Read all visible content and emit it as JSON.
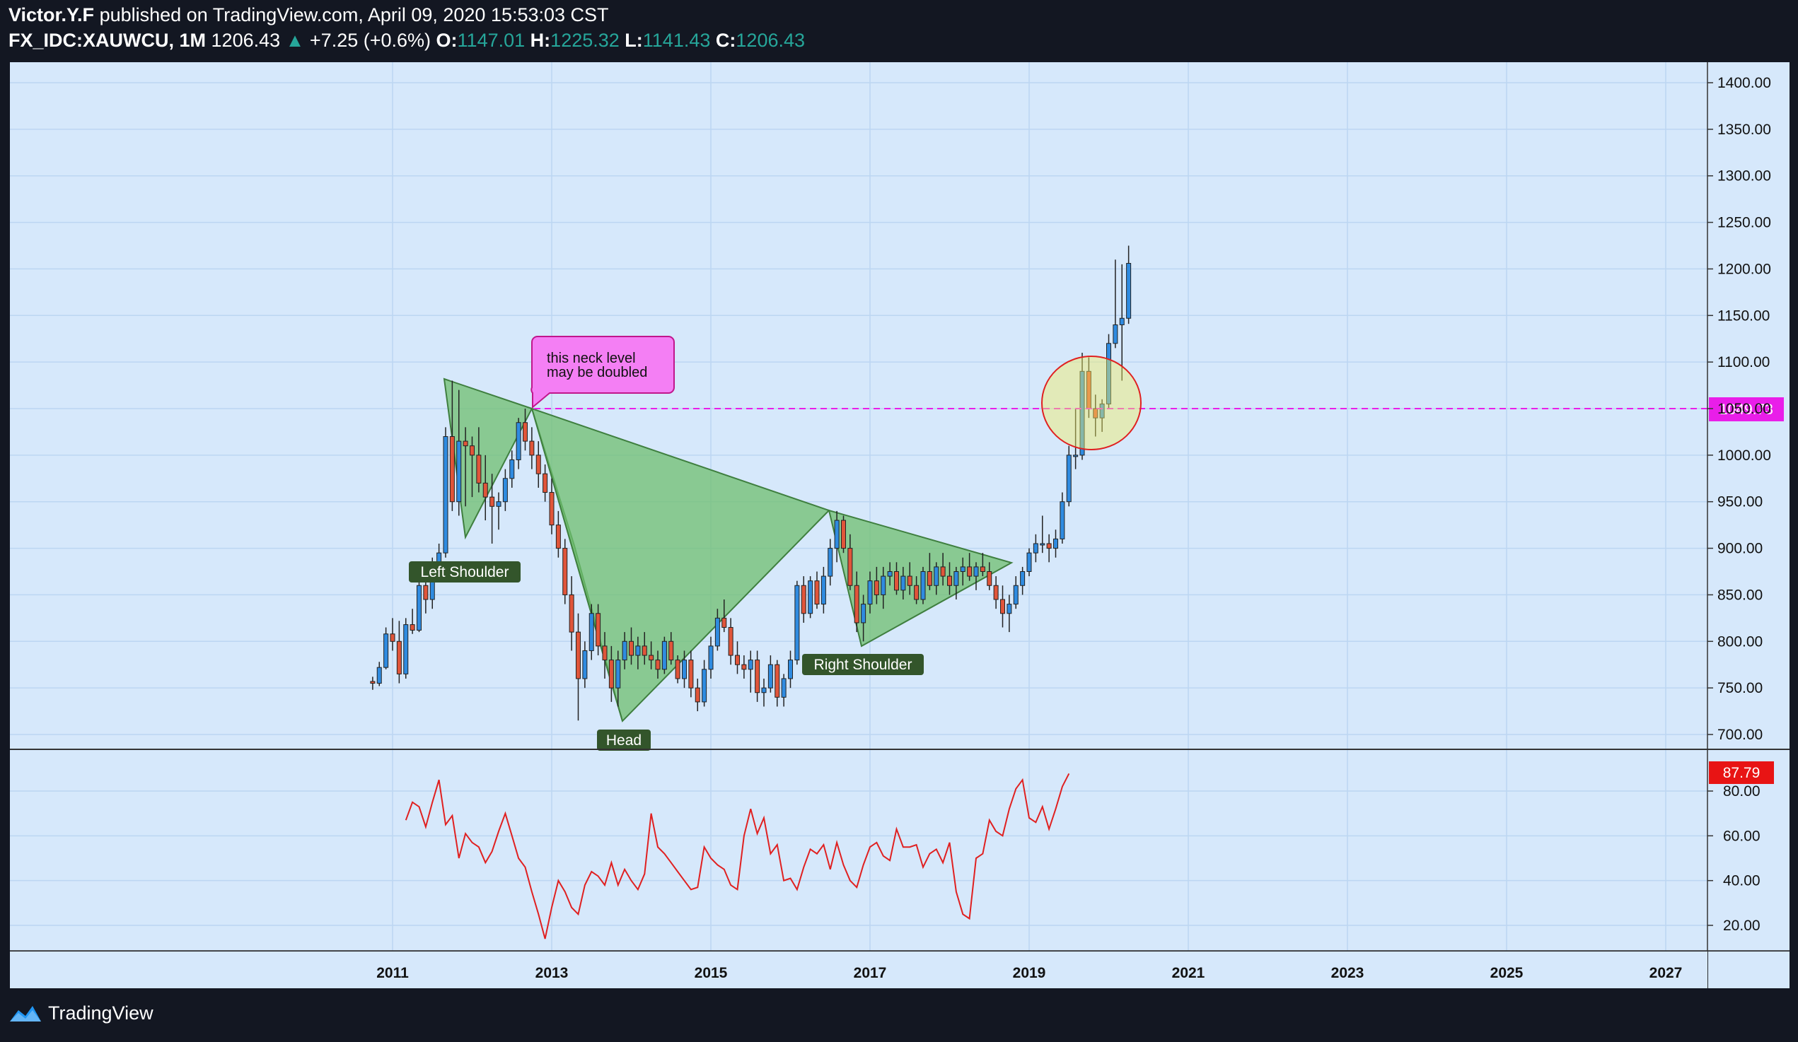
{
  "header": {
    "author": "Victor.Y.F",
    "published_text": "published on TradingView.com, April 09, 2020 15:53:03 CST",
    "symbol": "FX_IDC:XAUWCU, 1M",
    "last": "1206.43",
    "arrow": "▲",
    "change": "+7.25 (+0.6%)",
    "o_label": "O:",
    "o_value": "1147.01",
    "h_label": "H:",
    "h_value": "1225.32",
    "l_label": "L:",
    "l_value": "1141.43",
    "c_label": "C:",
    "c_value": "1206.43"
  },
  "footer": {
    "brand": "TradingView"
  },
  "colors": {
    "background": "#131722",
    "plot_bg": "#d6e8fb",
    "grid": "#bcd6f2",
    "bull": "#2f8be0",
    "bear": "#e0553a",
    "pattern_fill": "#6fbf6f",
    "neckline": "#e91ee9",
    "rsi_line": "#e02020",
    "label_bg": "#33552b"
  },
  "chart_data": [
    {
      "type": "candlestick",
      "interval": "1M",
      "x_axis": {
        "ticks": [
          "2011",
          "2013",
          "2015",
          "2017",
          "2019",
          "2021",
          "2023",
          "2025",
          "2027"
        ]
      },
      "y_axis": {
        "position": "right",
        "ylim": [
          683,
          1420
        ],
        "ticks": [
          "700.00",
          "750.00",
          "800.00",
          "850.00",
          "900.00",
          "950.00",
          "1000.00",
          "1050.00",
          "1100.00",
          "1150.00",
          "1200.00",
          "1250.00",
          "1300.00",
          "1350.00",
          "1400.00"
        ]
      },
      "grid": true,
      "candles_note": "Monthly OHLC from Oct 2010 to Apr 2020",
      "ohlc": [
        [
          "2010-10",
          757,
          762,
          748,
          755
        ],
        [
          "2010-11",
          755,
          778,
          752,
          772
        ],
        [
          "2010-12",
          772,
          815,
          770,
          808
        ],
        [
          "2011-01",
          808,
          825,
          790,
          800
        ],
        [
          "2011-02",
          800,
          822,
          755,
          765
        ],
        [
          "2011-03",
          765,
          825,
          760,
          818
        ],
        [
          "2011-04",
          818,
          835,
          808,
          812
        ],
        [
          "2011-05",
          812,
          870,
          810,
          860
        ],
        [
          "2011-06",
          860,
          870,
          830,
          845
        ],
        [
          "2011-07",
          845,
          890,
          835,
          880
        ],
        [
          "2011-08",
          880,
          905,
          870,
          895
        ],
        [
          "2011-09",
          895,
          1030,
          890,
          1020
        ],
        [
          "2011-10",
          1020,
          1080,
          940,
          950
        ],
        [
          "2011-11",
          950,
          1070,
          935,
          1015
        ],
        [
          "2011-12",
          1015,
          1030,
          945,
          1010
        ],
        [
          "2012-01",
          1010,
          1020,
          955,
          1000
        ],
        [
          "2012-02",
          1000,
          1030,
          960,
          970
        ],
        [
          "2012-03",
          970,
          1000,
          930,
          955
        ],
        [
          "2012-04",
          955,
          980,
          905,
          945
        ],
        [
          "2012-05",
          945,
          960,
          920,
          950
        ],
        [
          "2012-06",
          950,
          985,
          940,
          975
        ],
        [
          "2012-07",
          975,
          1005,
          965,
          995
        ],
        [
          "2012-08",
          995,
          1040,
          985,
          1035
        ],
        [
          "2012-09",
          1035,
          1050,
          1005,
          1015
        ],
        [
          "2012-10",
          1015,
          1030,
          985,
          1000
        ],
        [
          "2012-11",
          1000,
          1015,
          965,
          980
        ],
        [
          "2012-12",
          980,
          990,
          950,
          960
        ],
        [
          "2013-01",
          960,
          975,
          915,
          925
        ],
        [
          "2013-02",
          925,
          940,
          890,
          900
        ],
        [
          "2013-03",
          900,
          910,
          840,
          850
        ],
        [
          "2013-04",
          850,
          870,
          790,
          810
        ],
        [
          "2013-05",
          810,
          830,
          715,
          760
        ],
        [
          "2013-06",
          760,
          800,
          750,
          790
        ],
        [
          "2013-07",
          790,
          840,
          780,
          830
        ],
        [
          "2013-08",
          830,
          840,
          785,
          795
        ],
        [
          "2013-09",
          795,
          810,
          760,
          780
        ],
        [
          "2013-10",
          780,
          795,
          735,
          750
        ],
        [
          "2013-11",
          750,
          790,
          730,
          780
        ],
        [
          "2013-12",
          780,
          810,
          770,
          800
        ],
        [
          "2014-01",
          800,
          815,
          775,
          785
        ],
        [
          "2014-02",
          785,
          805,
          770,
          795
        ],
        [
          "2014-03",
          795,
          810,
          775,
          785
        ],
        [
          "2014-04",
          785,
          800,
          770,
          780
        ],
        [
          "2014-05",
          780,
          790,
          760,
          770
        ],
        [
          "2014-06",
          770,
          805,
          765,
          800
        ],
        [
          "2014-07",
          800,
          810,
          775,
          780
        ],
        [
          "2014-08",
          780,
          785,
          755,
          760
        ],
        [
          "2014-09",
          760,
          790,
          750,
          780
        ],
        [
          "2014-10",
          780,
          790,
          740,
          750
        ],
        [
          "2014-11",
          750,
          760,
          725,
          735
        ],
        [
          "2014-12",
          735,
          780,
          730,
          770
        ],
        [
          "2015-01",
          770,
          805,
          760,
          795
        ],
        [
          "2015-02",
          795,
          835,
          790,
          825
        ],
        [
          "2015-03",
          825,
          845,
          810,
          815
        ],
        [
          "2015-04",
          815,
          825,
          775,
          785
        ],
        [
          "2015-05",
          785,
          800,
          765,
          775
        ],
        [
          "2015-06",
          775,
          785,
          760,
          770
        ],
        [
          "2015-07",
          770,
          790,
          745,
          780
        ],
        [
          "2015-08",
          780,
          790,
          735,
          745
        ],
        [
          "2015-09",
          745,
          760,
          730,
          750
        ],
        [
          "2015-10",
          750,
          785,
          745,
          775
        ],
        [
          "2015-11",
          775,
          780,
          730,
          740
        ],
        [
          "2015-12",
          740,
          765,
          730,
          760
        ],
        [
          "2016-01",
          760,
          790,
          750,
          780
        ],
        [
          "2016-02",
          780,
          865,
          775,
          860
        ],
        [
          "2016-03",
          860,
          870,
          820,
          830
        ],
        [
          "2016-04",
          830,
          870,
          825,
          865
        ],
        [
          "2016-05",
          865,
          875,
          835,
          840
        ],
        [
          "2016-06",
          840,
          880,
          830,
          870
        ],
        [
          "2016-07",
          870,
          910,
          860,
          900
        ],
        [
          "2016-08",
          900,
          940,
          885,
          930
        ],
        [
          "2016-09",
          930,
          935,
          895,
          900
        ],
        [
          "2016-10",
          900,
          915,
          855,
          860
        ],
        [
          "2016-11",
          860,
          875,
          810,
          820
        ],
        [
          "2016-12",
          820,
          850,
          800,
          840
        ],
        [
          "2017-01",
          840,
          875,
          830,
          865
        ],
        [
          "2017-02",
          865,
          880,
          840,
          850
        ],
        [
          "2017-03",
          850,
          880,
          835,
          870
        ],
        [
          "2017-04",
          870,
          885,
          860,
          875
        ],
        [
          "2017-05",
          875,
          885,
          850,
          855
        ],
        [
          "2017-06",
          855,
          880,
          845,
          870
        ],
        [
          "2017-07",
          870,
          885,
          850,
          860
        ],
        [
          "2017-08",
          860,
          870,
          840,
          845
        ],
        [
          "2017-09",
          845,
          880,
          840,
          875
        ],
        [
          "2017-10",
          875,
          895,
          855,
          860
        ],
        [
          "2017-11",
          860,
          885,
          850,
          880
        ],
        [
          "2017-12",
          880,
          895,
          860,
          870
        ],
        [
          "2018-01",
          870,
          885,
          850,
          860
        ],
        [
          "2018-02",
          860,
          880,
          845,
          875
        ],
        [
          "2018-03",
          875,
          890,
          860,
          880
        ],
        [
          "2018-04",
          880,
          895,
          865,
          870
        ],
        [
          "2018-05",
          870,
          885,
          855,
          880
        ],
        [
          "2018-06",
          880,
          895,
          870,
          875
        ],
        [
          "2018-07",
          875,
          885,
          855,
          860
        ],
        [
          "2018-08",
          860,
          870,
          835,
          845
        ],
        [
          "2018-09",
          845,
          860,
          815,
          830
        ],
        [
          "2018-10",
          830,
          850,
          810,
          840
        ],
        [
          "2018-11",
          840,
          870,
          835,
          860
        ],
        [
          "2018-12",
          860,
          880,
          850,
          875
        ],
        [
          "2019-01",
          875,
          900,
          870,
          895
        ],
        [
          "2019-02",
          895,
          915,
          885,
          905
        ],
        [
          "2019-03",
          905,
          935,
          895,
          905
        ],
        [
          "2019-04",
          905,
          915,
          885,
          900
        ],
        [
          "2019-05",
          900,
          920,
          890,
          910
        ],
        [
          "2019-06",
          910,
          960,
          905,
          950
        ],
        [
          "2019-07",
          950,
          1010,
          945,
          1000
        ],
        [
          "2019-08",
          1000,
          1050,
          985,
          1000
        ],
        [
          "2019-09",
          1000,
          1110,
          995,
          1090
        ],
        [
          "2019-10",
          1090,
          1105,
          1040,
          1050
        ],
        [
          "2019-11",
          1050,
          1065,
          1020,
          1040
        ],
        [
          "2019-12",
          1040,
          1060,
          1025,
          1055
        ],
        [
          "2020-01",
          1055,
          1130,
          1050,
          1120
        ],
        [
          "2020-02",
          1120,
          1210,
          1115,
          1140
        ],
        [
          "2020-03",
          1140,
          1205,
          1080,
          1147
        ],
        [
          "2020-04",
          1147,
          1225,
          1141,
          1206
        ]
      ],
      "neckline_level": "1049.73",
      "annotations": {
        "left_shoulder": "Left Shoulder",
        "head": "Head",
        "right_shoulder": "Right Shoulder",
        "callout_line1": "this neck level",
        "callout_line2": "may be doubled"
      }
    },
    {
      "type": "line",
      "name": "",
      "y_axis": {
        "position": "right",
        "ylim": [
          5,
          95
        ],
        "ticks": [
          "20.00",
          "40.00",
          "60.00",
          "80.00"
        ]
      },
      "last_value": "87.79",
      "values": [
        67,
        75,
        73,
        64,
        75,
        85,
        65,
        69,
        50,
        61,
        57,
        55,
        48,
        53,
        62,
        70,
        60,
        50,
        46,
        35,
        25,
        14,
        28,
        40,
        35,
        28,
        25,
        38,
        44,
        42,
        38,
        48,
        38,
        45,
        40,
        36,
        43,
        70,
        55,
        52,
        48,
        44,
        40,
        36,
        37,
        55,
        50,
        47,
        45,
        38,
        36,
        60,
        72,
        61,
        68,
        52,
        56,
        40,
        41,
        36,
        46,
        54,
        52,
        56,
        45,
        57,
        47,
        40,
        37,
        47,
        55,
        57,
        51,
        49,
        63,
        55,
        55,
        56,
        46,
        52,
        54,
        48,
        57,
        35,
        25,
        23,
        50,
        52,
        67,
        62,
        60,
        72,
        81,
        85,
        68,
        66,
        73,
        63,
        72,
        82,
        87.79
      ]
    }
  ]
}
